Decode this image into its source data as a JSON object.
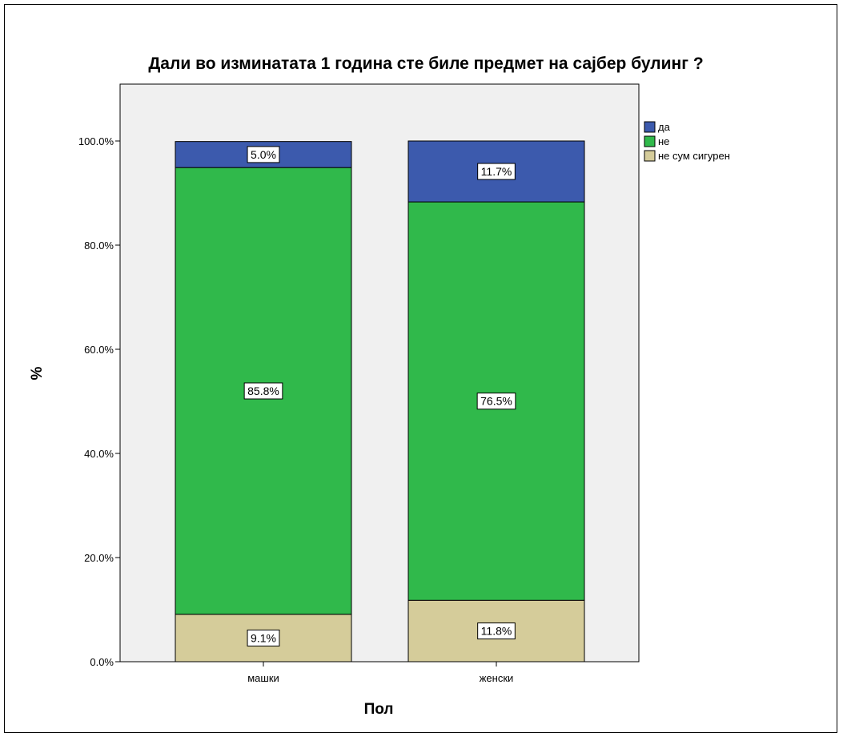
{
  "chart_data": {
    "type": "bar",
    "stacked": true,
    "title": "Дали во изминатата 1 година сте биле предмет  на сајбер булинг ?",
    "xlabel": "Пол",
    "ylabel": "%",
    "categories": [
      "машки",
      "женски"
    ],
    "series": [
      {
        "name": "не сум сигурен",
        "values": [
          9.1,
          11.8
        ],
        "labels": [
          "9.1%",
          "11.8%"
        ],
        "color": "#d5cc9a"
      },
      {
        "name": "не",
        "values": [
          85.8,
          76.5
        ],
        "labels": [
          "85.8%",
          "76.5%"
        ],
        "color": "#30b94b"
      },
      {
        "name": "да",
        "values": [
          5.0,
          11.7
        ],
        "labels": [
          "5.0%",
          "11.7%"
        ],
        "color": "#3c5aad"
      }
    ],
    "legend_order": [
      "да",
      "не",
      "не сум сигурен"
    ],
    "legend_position": "right",
    "ylim": [
      0,
      100
    ],
    "yticks": [
      0,
      20,
      40,
      60,
      80,
      100
    ],
    "ytick_labels": [
      "0.0%",
      "20.0%",
      "40.0%",
      "60.0%",
      "80.0%",
      "100.0%"
    ],
    "grid": false,
    "plot_background": "#f0f0f0"
  }
}
